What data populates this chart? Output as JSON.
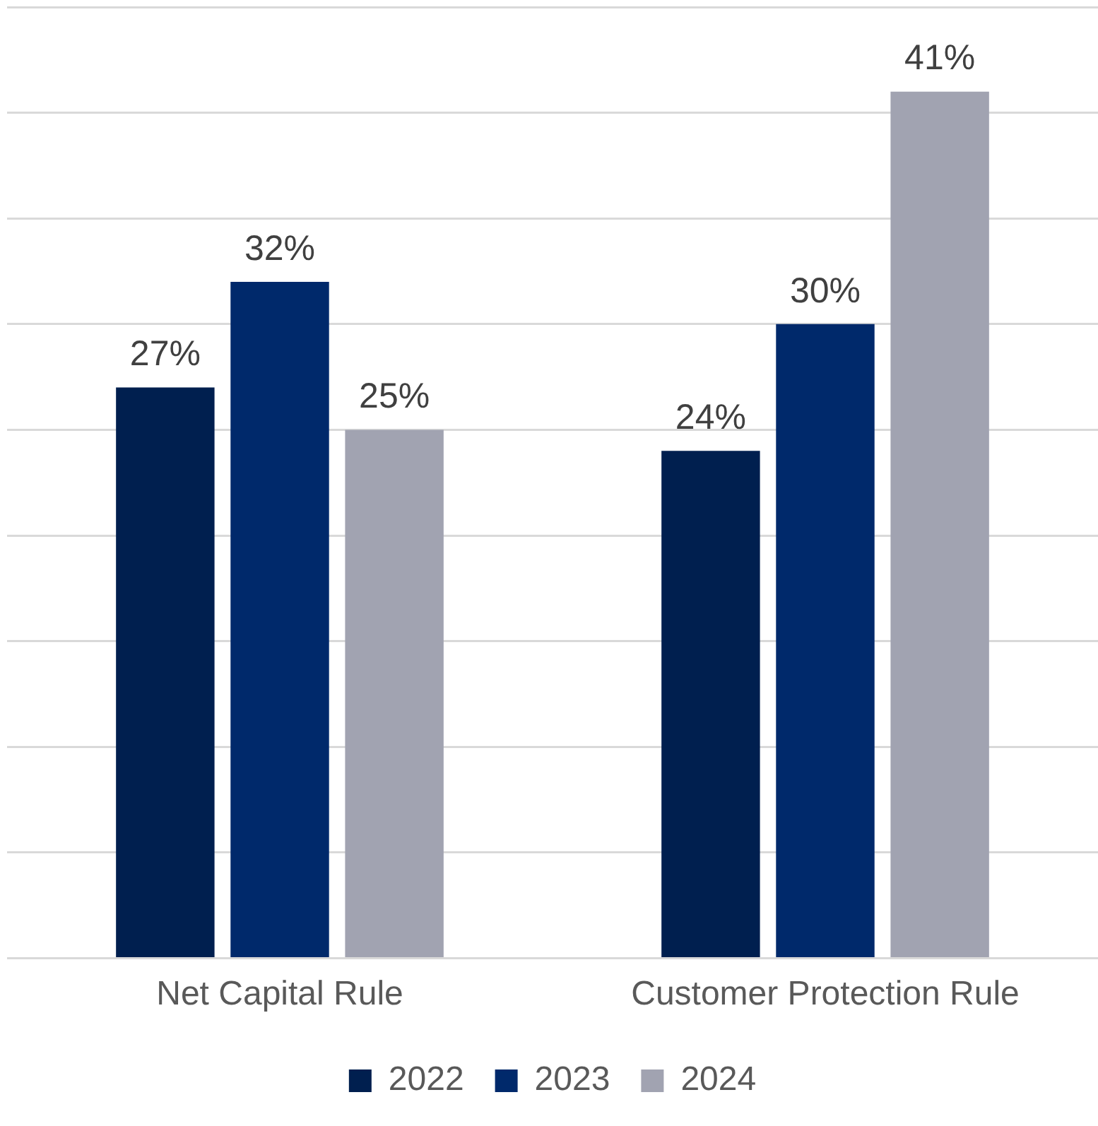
{
  "chart_data": {
    "type": "bar",
    "categories": [
      "Net Capital Rule",
      "Customer Protection Rule"
    ],
    "series": [
      {
        "name": "2022",
        "color": "#001f4f",
        "values": [
          27,
          24
        ],
        "value_labels": [
          "27%",
          "24%"
        ]
      },
      {
        "name": "2023",
        "color": "#00296b",
        "values": [
          32,
          30
        ],
        "value_labels": [
          "32%",
          "30%"
        ]
      },
      {
        "name": "2024",
        "color": "#a1a3b1",
        "values": [
          25,
          41
        ],
        "value_labels": [
          "25%",
          "41%"
        ]
      }
    ],
    "ylim": [
      0,
      45
    ],
    "yticks": [
      {
        "value": 0,
        "label": null
      },
      {
        "value": 5,
        "label": null
      },
      {
        "value": 10,
        "label": null
      },
      {
        "value": 15,
        "label": null
      },
      {
        "value": 20,
        "label": null
      },
      {
        "value": 25,
        "label": null
      },
      {
        "value": 30,
        "label": null
      },
      {
        "value": 35,
        "label": null
      },
      {
        "value": 40,
        "label": null
      },
      {
        "value": 45,
        "label": null
      }
    ],
    "grid": "y",
    "legend": "bottom",
    "tick_labels": "x"
  }
}
